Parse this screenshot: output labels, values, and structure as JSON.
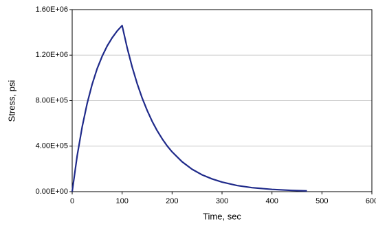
{
  "chart_data": {
    "type": "line",
    "x_label": "Time, sec",
    "y_label": "Stress, psi",
    "xlim": [
      0,
      600
    ],
    "xticks": [
      0,
      100,
      200,
      300,
      400,
      500,
      600
    ],
    "ylim": [
      0,
      1600000
    ],
    "yticks": [
      {
        "value": 0,
        "label": "0.00E+00"
      },
      {
        "value": 400000,
        "label": "4.00E+05"
      },
      {
        "value": 800000,
        "label": "8.00E+05"
      },
      {
        "value": 1200000,
        "label": "1.20E+06"
      },
      {
        "value": 1600000,
        "label": "1.60E+06"
      }
    ],
    "grid": true,
    "series": [
      {
        "color": "#1f2a8a",
        "x": [
          0,
          10,
          20,
          30,
          40,
          50,
          60,
          70,
          80,
          90,
          100,
          110,
          120,
          130,
          140,
          150,
          160,
          170,
          180,
          190,
          200,
          220,
          240,
          260,
          280,
          300,
          330,
          360,
          400,
          440,
          470
        ],
        "values": [
          0,
          315000,
          569000,
          776000,
          944000,
          1081000,
          1190000,
          1280000,
          1352000,
          1412000,
          1460000,
          1266000,
          1097000,
          951000,
          824000,
          715000,
          619000,
          537000,
          466000,
          403000,
          350000,
          263000,
          197000,
          148000,
          112000,
          84000,
          54000,
          35000,
          20000,
          11000,
          7000
        ]
      }
    ]
  }
}
